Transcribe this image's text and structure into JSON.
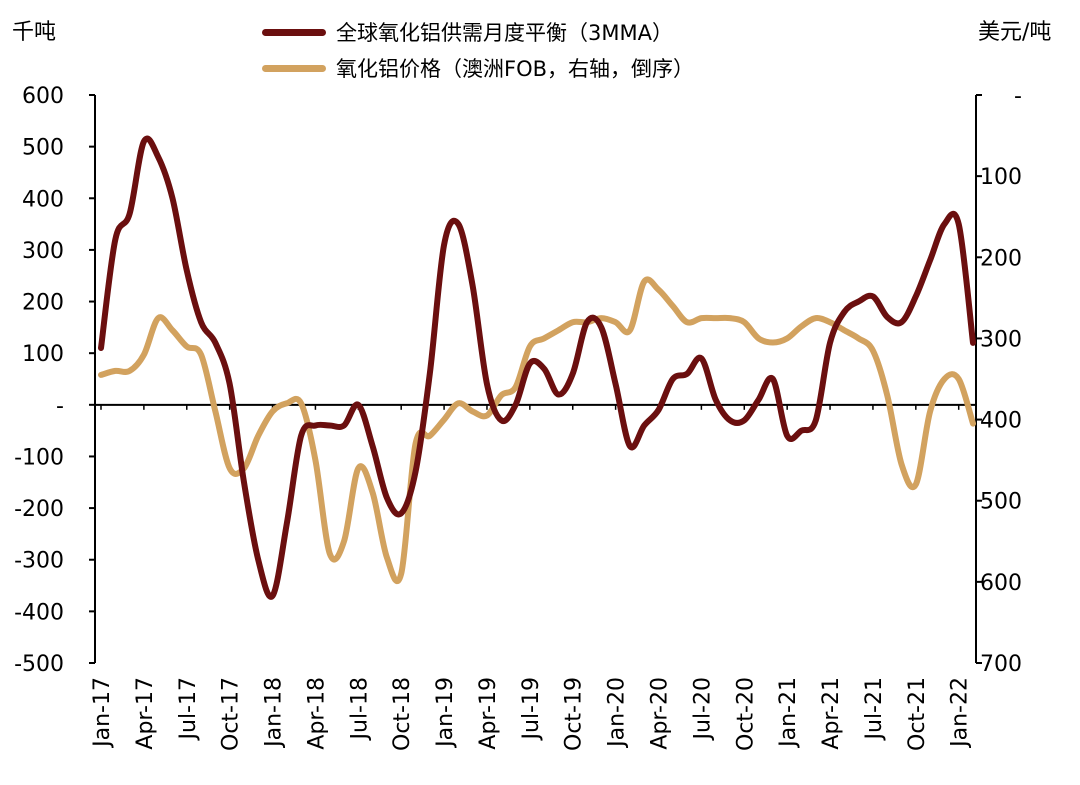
{
  "chart_data": {
    "type": "line",
    "left_axis_unit": "千吨",
    "right_axis_unit": "美元/吨",
    "left_axis": {
      "min": -500,
      "max": 600,
      "ticks": [
        600,
        500,
        400,
        300,
        200,
        100,
        0,
        -100,
        -200,
        -300,
        -400,
        -500
      ],
      "tick_labels": [
        "600",
        "500",
        "400",
        "300",
        "200",
        "100",
        "-",
        "-100",
        "-200",
        "-300",
        "-400",
        "-500"
      ]
    },
    "right_axis": {
      "reversed": true,
      "min": 0,
      "max": 700,
      "ticks": [
        0,
        100,
        200,
        300,
        400,
        500,
        600,
        700
      ],
      "tick_labels": [
        "-",
        "100",
        "200",
        "300",
        "400",
        "500",
        "600",
        "700"
      ]
    },
    "x_tick_labels": [
      "Jan-17",
      "Apr-17",
      "Jul-17",
      "Oct-17",
      "Jan-18",
      "Apr-18",
      "Jul-18",
      "Oct-18",
      "Jan-19",
      "Apr-19",
      "Jul-19",
      "Oct-19",
      "Jan-20",
      "Apr-20",
      "Jul-20",
      "Oct-20",
      "Jan-21",
      "Apr-21",
      "Jul-21",
      "Oct-21",
      "Jan-22"
    ],
    "series": [
      {
        "name": "全球氧化铝供需月度平衡（3MMA）",
        "axis": "left",
        "color": "#6b0f0f",
        "x": [
          "Jan-17",
          "Feb-17",
          "Mar-17",
          "Apr-17",
          "May-17",
          "Jun-17",
          "Jul-17",
          "Aug-17",
          "Sep-17",
          "Oct-17",
          "Nov-17",
          "Dec-17",
          "Jan-18",
          "Feb-18",
          "Mar-18",
          "Apr-18",
          "May-18",
          "Jun-18",
          "Jul-18",
          "Aug-18",
          "Sep-18",
          "Oct-18",
          "Nov-18",
          "Dec-18",
          "Jan-19",
          "Feb-19",
          "Mar-19",
          "Apr-19",
          "May-19",
          "Jun-19",
          "Jul-19",
          "Aug-19",
          "Sep-19",
          "Oct-19",
          "Nov-19",
          "Dec-19",
          "Jan-20",
          "Feb-20",
          "Mar-20",
          "Apr-20",
          "May-20",
          "Jun-20",
          "Jul-20",
          "Aug-20",
          "Sep-20",
          "Oct-20",
          "Nov-20",
          "Dec-20",
          "Jan-21",
          "Feb-21",
          "Mar-21",
          "Apr-21",
          "May-21",
          "Jun-21",
          "Jul-21",
          "Aug-21",
          "Sep-21",
          "Oct-21",
          "Nov-21",
          "Dec-21",
          "Jan-22",
          "Feb-22"
        ],
        "values": [
          110,
          320,
          370,
          510,
          480,
          400,
          260,
          160,
          120,
          40,
          -150,
          -300,
          -370,
          -230,
          -60,
          -40,
          -40,
          -40,
          0,
          -80,
          -180,
          -210,
          -130,
          60,
          310,
          350,
          230,
          40,
          -30,
          0,
          80,
          70,
          20,
          60,
          160,
          150,
          40,
          -80,
          -40,
          -10,
          50,
          60,
          90,
          10,
          -30,
          -30,
          10,
          50,
          -60,
          -50,
          -30,
          120,
          180,
          200,
          210,
          170,
          160,
          210,
          280,
          350,
          350,
          120
        ]
      },
      {
        "name": "氧化铝价格（澳洲FOB，右轴，倒序）",
        "axis": "right",
        "color": "#d2a25f",
        "x": [
          "Jan-17",
          "Feb-17",
          "Mar-17",
          "Apr-17",
          "May-17",
          "Jun-17",
          "Jul-17",
          "Aug-17",
          "Sep-17",
          "Oct-17",
          "Nov-17",
          "Dec-17",
          "Jan-18",
          "Feb-18",
          "Mar-18",
          "Apr-18",
          "May-18",
          "Jun-18",
          "Jul-18",
          "Aug-18",
          "Sep-18",
          "Oct-18",
          "Nov-18",
          "Dec-18",
          "Jan-19",
          "Feb-19",
          "Mar-19",
          "Apr-19",
          "May-19",
          "Jun-19",
          "Jul-19",
          "Aug-19",
          "Sep-19",
          "Oct-19",
          "Nov-19",
          "Dec-19",
          "Jan-20",
          "Feb-20",
          "Mar-20",
          "Apr-20",
          "May-20",
          "Jun-20",
          "Jul-20",
          "Aug-20",
          "Sep-20",
          "Oct-20",
          "Nov-20",
          "Dec-20",
          "Jan-21",
          "Feb-21",
          "Mar-21",
          "Apr-21",
          "May-21",
          "Jun-21",
          "Jul-21",
          "Aug-21",
          "Sep-21",
          "Oct-21",
          "Nov-21",
          "Dec-21",
          "Jan-22",
          "Feb-22"
        ],
        "values": [
          345,
          340,
          340,
          320,
          275,
          290,
          310,
          320,
          390,
          460,
          460,
          420,
          390,
          380,
          380,
          450,
          565,
          550,
          460,
          490,
          570,
          590,
          430,
          420,
          400,
          380,
          390,
          395,
          370,
          360,
          310,
          300,
          290,
          280,
          280,
          275,
          280,
          290,
          230,
          240,
          260,
          280,
          275,
          275,
          275,
          280,
          300,
          305,
          300,
          285,
          275,
          280,
          290,
          300,
          315,
          370,
          455,
          480,
          390,
          350,
          350,
          405
        ]
      }
    ]
  }
}
